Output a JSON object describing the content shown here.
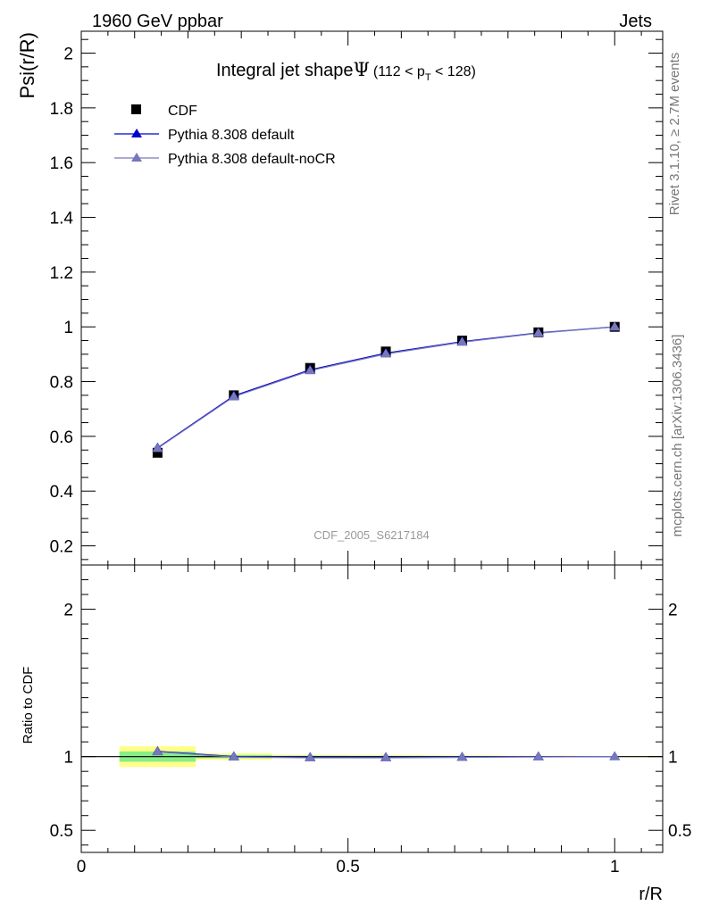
{
  "header": {
    "left": "1960 GeV ppbar",
    "right": "Jets",
    "side_top": "Rivet 3.1.10, ≥ 2.7M events",
    "side_bottom": "mcplots.cern.ch [arXiv:1306.3436]",
    "watermark": "CDF_2005_S6217184"
  },
  "chart_data": [
    {
      "type": "line",
      "panel": "main",
      "title": "Integral jet shape",
      "title_symbol": "Ψ",
      "title_range_pre": "(112 < p",
      "title_range_sub": "T",
      "title_range_post": " < 128)",
      "ylabel": "Psi(r/R)",
      "ylim": [
        0.13,
        2.08
      ],
      "yticks": [
        0.2,
        0.4,
        0.6,
        0.8,
        1,
        1.2,
        1.4,
        1.6,
        1.8,
        2
      ],
      "yticklabels": [
        "0.2",
        "0.4",
        "0.6",
        "0.8",
        "1",
        "1.2",
        "1.4",
        "1.6",
        "1.8",
        "2"
      ],
      "legend_position": "top-left",
      "x": [
        0.143,
        0.286,
        0.429,
        0.571,
        0.714,
        0.857,
        1.0
      ],
      "series": [
        {
          "name": "CDF",
          "marker": "square",
          "color": "#000000",
          "values": [
            0.54,
            0.75,
            0.85,
            0.91,
            0.95,
            0.98,
            1.0
          ]
        },
        {
          "name": "Pythia 8.308 default",
          "marker": "triangle",
          "color": "#0000cc",
          "values": [
            0.558,
            0.748,
            0.843,
            0.904,
            0.946,
            0.978,
            1.0
          ]
        },
        {
          "name": "Pythia 8.308 default-noCR",
          "marker": "triangle",
          "color": "#7777bb",
          "values": [
            0.556,
            0.745,
            0.84,
            0.901,
            0.944,
            0.977,
            1.0
          ]
        }
      ]
    },
    {
      "type": "line",
      "panel": "ratio",
      "ylabel": "Ratio to CDF",
      "xlabel": "r/R",
      "ylim": [
        0.35,
        2.3
      ],
      "yticks": [
        0.5,
        1,
        2
      ],
      "yticklabels": [
        "0.5",
        "1",
        "2"
      ],
      "xlim": [
        0,
        1.09
      ],
      "xticks": [
        0,
        0.5,
        1
      ],
      "xticklabels": [
        "0",
        "0.5",
        "1"
      ],
      "bin_edges": [
        0.0715,
        0.2145,
        0.3575,
        0.5,
        0.643,
        0.786,
        0.929,
        1.0715
      ],
      "bands": {
        "yellow_color": "#ffff88",
        "green_color": "#88ee88",
        "yellow_halfwidth": [
          0.07,
          0.022,
          0.012,
          0.011,
          0.008,
          0.006,
          0.004
        ],
        "green_halfwidth": [
          0.035,
          0.011,
          0.006,
          0.005,
          0.004,
          0.003,
          0.002
        ]
      },
      "x": [
        0.143,
        0.286,
        0.429,
        0.571,
        0.714,
        0.857,
        1.0
      ],
      "series": [
        {
          "name": "Pythia 8.308 default",
          "color": "#0000cc",
          "values": [
            1.036,
            1.0,
            0.995,
            0.995,
            0.997,
            1.0,
            1.0
          ]
        },
        {
          "name": "Pythia 8.308 default-noCR",
          "color": "#7777bb",
          "values": [
            1.033,
            0.997,
            0.992,
            0.992,
            0.995,
            0.998,
            1.0
          ]
        }
      ]
    }
  ]
}
